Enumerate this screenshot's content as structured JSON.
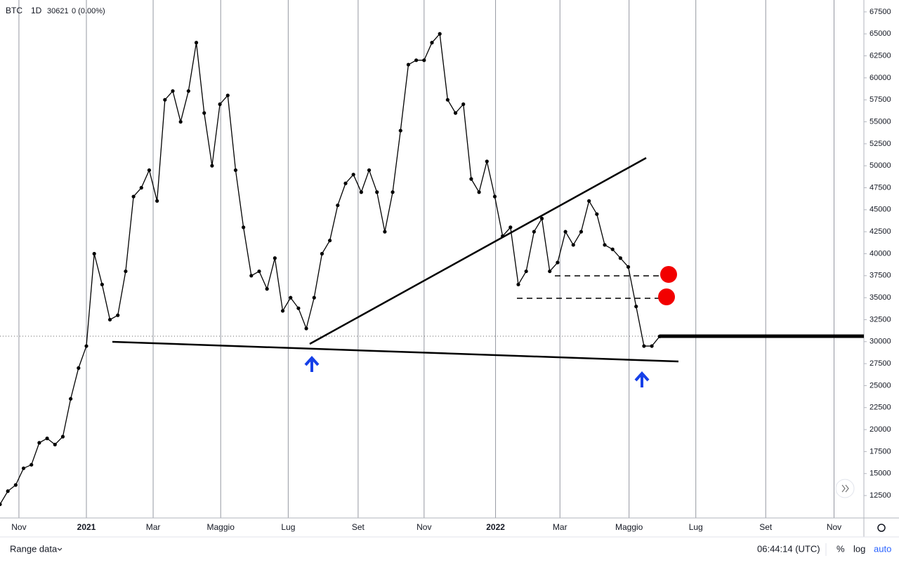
{
  "chart_data": {
    "type": "line",
    "symbol": "BTC",
    "interval": "1D",
    "last_price": 30621,
    "change": "0 (0.00%)",
    "color": "#000000",
    "values": [
      11500,
      13000,
      13700,
      15600,
      16000,
      18500,
      19000,
      18300,
      19200,
      23500,
      27000,
      29500,
      40000,
      36500,
      32500,
      33000,
      38000,
      46500,
      47500,
      49500,
      46000,
      57500,
      58500,
      55000,
      58500,
      64000,
      56000,
      50000,
      57000,
      58000,
      49500,
      43000,
      37500,
      38000,
      36000,
      39500,
      33500,
      35000,
      33800,
      31500,
      35000,
      40000,
      41500,
      45500,
      48000,
      49000,
      47000,
      49500,
      47000,
      42500,
      47000,
      54000,
      61500,
      62000,
      62000,
      64000,
      65000,
      57500,
      56000,
      57000,
      48500,
      47000,
      50500,
      46500,
      42000,
      43000,
      36500,
      38000,
      42500,
      44000,
      38000,
      39000,
      42500,
      41000,
      42500,
      46000,
      44500,
      41000,
      40500,
      39500,
      38500,
      34000,
      29500,
      29500,
      30600
    ],
    "xlim": [
      0,
      110
    ],
    "xticks": [
      {
        "value": 2.41,
        "label": "Nov"
      },
      {
        "value": 11.0,
        "label": "2021"
      },
      {
        "value": 19.5,
        "label": "Mar"
      },
      {
        "value": 28.1,
        "label": "Maggio"
      },
      {
        "value": 36.7,
        "label": "Lug"
      },
      {
        "value": 45.6,
        "label": "Set"
      },
      {
        "value": 54.0,
        "label": "Nov"
      },
      {
        "value": 63.1,
        "label": "2022"
      },
      {
        "value": 71.3,
        "label": "Mar"
      },
      {
        "value": 80.1,
        "label": "Maggio"
      },
      {
        "value": 88.6,
        "label": "Lug"
      },
      {
        "value": 97.5,
        "label": "Set"
      },
      {
        "value": 106.2,
        "label": "Nov"
      }
    ],
    "ylim": [
      9950,
      68850
    ],
    "yticks": [
      12500,
      15000,
      17500,
      20000,
      22500,
      25000,
      27500,
      30000,
      32500,
      35000,
      37500,
      40000,
      42500,
      45000,
      47500,
      50000,
      52500,
      55000,
      57500,
      60000,
      62500,
      65000,
      67500
    ],
    "grid": true
  },
  "footer": {
    "range": "Range data",
    "time": "06:44:14 (UTC)",
    "percent": "%",
    "log": "log",
    "auto": "auto"
  }
}
